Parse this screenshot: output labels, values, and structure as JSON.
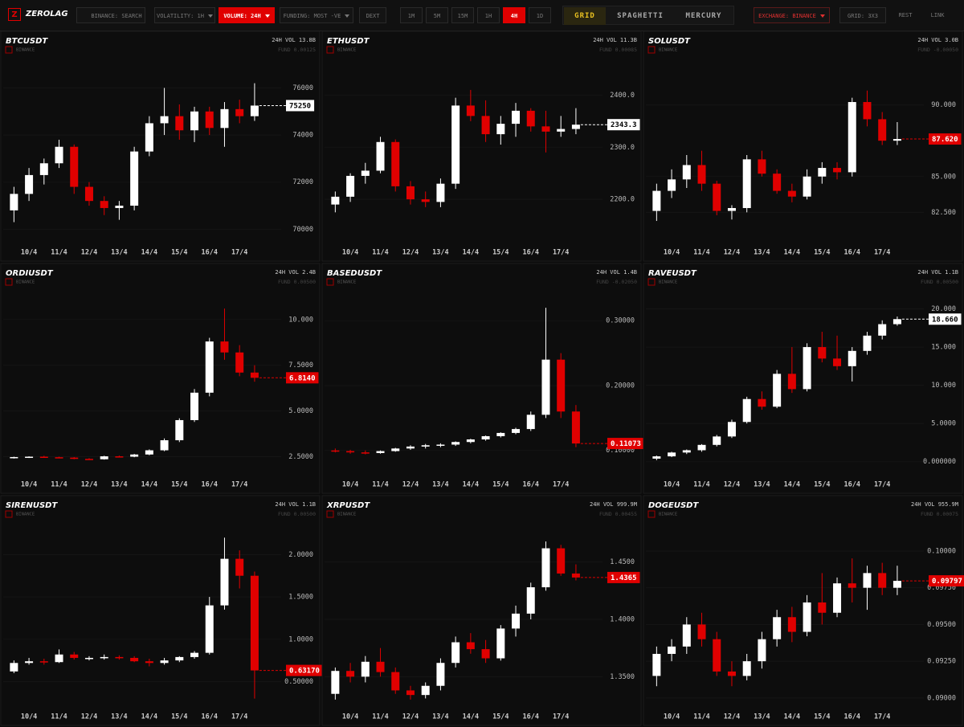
{
  "toolbar": {
    "logo_mark": "Z",
    "logo": "ZEROLAG",
    "search": "BINANCE: SEARCH",
    "filters": [
      "VOLATILITY: 1H",
      "VOLUME: 24H",
      "FUNDING: MOST -VE",
      "DEXT"
    ],
    "active_filter": 1,
    "timeframes": [
      "1M",
      "5M",
      "15M",
      "1H",
      "4H",
      "1D"
    ],
    "active_timeframe": 4,
    "views": [
      "GRID",
      "SPAGHETTI",
      "MERCURY"
    ],
    "active_view": 0,
    "exchange": "EXCHANGE: BINANCE",
    "grid": "GRID: 3X3",
    "rest": "REST",
    "link": "LINK"
  },
  "chart_data": [
    {
      "type": "candlestick",
      "title": "BTCUSDT",
      "exchange": "BINANCE",
      "volume": "24H VOL 13.8B",
      "funding": "FUND 0.00125",
      "categories": [
        "10/4",
        "11/4",
        "12/4",
        "13/4",
        "14/4",
        "15/4",
        "16/4",
        "17/4"
      ],
      "open": [
        70800,
        71500,
        72300,
        72800,
        73500,
        71800,
        71200,
        70900,
        71000,
        73300,
        74500,
        74800,
        74200,
        75000,
        74300,
        75100,
        74800
      ],
      "high": [
        71800,
        72600,
        73000,
        73800,
        73600,
        72000,
        71400,
        71200,
        73500,
        74800,
        76000,
        75300,
        75200,
        75200,
        75400,
        75500,
        76200
      ],
      "low": [
        70300,
        71200,
        71900,
        72600,
        71500,
        71000,
        70600,
        70400,
        70800,
        73100,
        74000,
        73800,
        73700,
        74000,
        73500,
        74500,
        74600
      ],
      "close": [
        71500,
        72300,
        72800,
        73500,
        71800,
        71200,
        70900,
        71000,
        73300,
        74500,
        74800,
        74200,
        75000,
        74300,
        75100,
        74800,
        75250
      ],
      "last_label": "75250",
      "last_color": "#ffffff",
      "up_color": "#ffffff",
      "down_color": "#e00000",
      "ylim": [
        69500,
        76800
      ],
      "yticks": [
        70000,
        72000,
        74000,
        76000
      ]
    },
    {
      "type": "candlestick",
      "title": "ETHUSDT",
      "exchange": "BINANCE",
      "volume": "24H VOL 11.3B",
      "funding": "FUND 0.00085",
      "categories": [
        "10/4",
        "11/4",
        "12/4",
        "13/4",
        "14/4",
        "15/4",
        "16/4",
        "17/4"
      ],
      "open": [
        2190,
        2205,
        2245,
        2255,
        2310,
        2225,
        2200,
        2195,
        2230,
        2380,
        2360,
        2325,
        2345,
        2370,
        2340,
        2330,
        2335
      ],
      "high": [
        2215,
        2250,
        2270,
        2320,
        2315,
        2235,
        2215,
        2240,
        2395,
        2410,
        2390,
        2360,
        2385,
        2375,
        2370,
        2360,
        2375
      ],
      "low": [
        2175,
        2195,
        2230,
        2250,
        2215,
        2190,
        2185,
        2185,
        2220,
        2350,
        2310,
        2305,
        2320,
        2330,
        2290,
        2320,
        2325
      ],
      "close": [
        2205,
        2245,
        2255,
        2310,
        2225,
        2200,
        2195,
        2230,
        2380,
        2360,
        2325,
        2345,
        2370,
        2340,
        2330,
        2335,
        2343.3
      ],
      "last_label": "2343.3",
      "last_color": "#ffffff",
      "up_color": "#ffffff",
      "down_color": "#e00000",
      "ylim": [
        2120,
        2450
      ],
      "yticks": [
        {
          "value": 2200,
          "label": "2200.0"
        },
        {
          "value": 2300,
          "label": "2300.0"
        },
        {
          "value": 2400,
          "label": "2400.0"
        }
      ]
    },
    {
      "type": "candlestick",
      "title": "SOLUSDT",
      "exchange": "BINANCE",
      "volume": "24H VOL 3.0B",
      "funding": "FUND -0.00050",
      "categories": [
        "10/4",
        "11/4",
        "12/4",
        "13/4",
        "14/4",
        "15/4",
        "16/4",
        "17/4"
      ],
      "open": [
        82.6,
        84.0,
        84.8,
        85.8,
        84.5,
        82.6,
        82.8,
        86.2,
        85.2,
        84.0,
        83.6,
        85.0,
        85.6,
        85.3,
        90.2,
        89.0,
        87.5
      ],
      "high": [
        84.5,
        85.5,
        86.5,
        86.8,
        84.7,
        83.0,
        86.5,
        86.8,
        85.5,
        84.5,
        85.5,
        86.0,
        86.0,
        90.5,
        91.0,
        89.5,
        88.8
      ],
      "low": [
        81.9,
        83.5,
        84.2,
        84.0,
        82.3,
        82.0,
        82.5,
        85.0,
        83.8,
        83.2,
        83.4,
        84.5,
        84.8,
        85.0,
        88.5,
        87.2,
        87.2
      ],
      "close": [
        84.0,
        84.8,
        85.8,
        84.5,
        82.6,
        82.8,
        86.2,
        85.2,
        84.0,
        83.6,
        85.0,
        85.6,
        85.3,
        90.2,
        89.0,
        87.5,
        87.62
      ],
      "last_label": "87.620",
      "last_color": "#e00000",
      "up_color": "#ffffff",
      "down_color": "#e00000",
      "ylim": [
        80.5,
        92.5
      ],
      "yticks": [
        {
          "value": 82.5,
          "label": "82.500"
        },
        {
          "value": 85,
          "label": "85.000"
        },
        {
          "value": 90,
          "label": "90.000"
        }
      ]
    },
    {
      "type": "candlestick",
      "title": "ORDIUSDT",
      "exchange": "BINANCE",
      "volume": "24H VOL 2.4B",
      "funding": "FUND 0.00500",
      "categories": [
        "10/4",
        "11/4",
        "12/4",
        "13/4",
        "14/4",
        "15/4",
        "16/4",
        "17/4"
      ],
      "open": [
        2.45,
        2.48,
        2.5,
        2.47,
        2.45,
        2.38,
        2.36,
        2.52,
        2.5,
        2.62,
        2.85,
        3.4,
        4.5,
        6.0,
        8.8,
        8.2,
        7.1
      ],
      "high": [
        2.5,
        2.52,
        2.55,
        2.5,
        2.48,
        2.42,
        2.55,
        2.56,
        2.65,
        2.9,
        3.5,
        4.6,
        6.2,
        9.0,
        10.6,
        8.6,
        7.5
      ],
      "low": [
        2.4,
        2.43,
        2.45,
        2.42,
        2.36,
        2.33,
        2.34,
        2.46,
        2.47,
        2.58,
        2.8,
        3.3,
        4.4,
        5.8,
        7.8,
        6.9,
        6.6
      ],
      "close": [
        2.48,
        2.5,
        2.47,
        2.45,
        2.38,
        2.36,
        2.52,
        2.5,
        2.62,
        2.85,
        3.4,
        4.5,
        6.0,
        8.8,
        8.2,
        7.1,
        6.814
      ],
      "last_label": "6.8140",
      "last_color": "#e00000",
      "up_color": "#ffffff",
      "down_color": "#e00000",
      "ylim": [
        1.6,
        11
      ],
      "yticks": [
        {
          "value": 2.5,
          "label": "2.5000"
        },
        {
          "value": 5,
          "label": "5.0000"
        },
        {
          "value": 7.5,
          "label": "7.5000"
        },
        {
          "value": 10,
          "label": "10.000"
        }
      ]
    },
    {
      "type": "candlestick",
      "title": "BASEDUSDT",
      "exchange": "BINANCE",
      "volume": "24H VOL 1.4B",
      "funding": "FUND -0.02050",
      "categories": [
        "10/4",
        "11/4",
        "12/4",
        "13/4",
        "14/4",
        "15/4",
        "16/4",
        "17/4"
      ],
      "open": [
        0.1,
        0.099,
        0.097,
        0.096,
        0.099,
        0.103,
        0.106,
        0.108,
        0.109,
        0.113,
        0.117,
        0.122,
        0.127,
        0.133,
        0.155,
        0.24,
        0.16
      ],
      "high": [
        0.103,
        0.101,
        0.1,
        0.1,
        0.104,
        0.108,
        0.11,
        0.111,
        0.114,
        0.118,
        0.123,
        0.128,
        0.135,
        0.16,
        0.32,
        0.25,
        0.17
      ],
      "low": [
        0.097,
        0.095,
        0.094,
        0.095,
        0.098,
        0.101,
        0.103,
        0.105,
        0.107,
        0.111,
        0.115,
        0.12,
        0.125,
        0.13,
        0.15,
        0.15,
        0.105
      ],
      "close": [
        0.099,
        0.097,
        0.096,
        0.099,
        0.103,
        0.106,
        0.108,
        0.109,
        0.113,
        0.117,
        0.122,
        0.127,
        0.133,
        0.155,
        0.24,
        0.16,
        0.11073
      ],
      "last_label": "0.11073",
      "last_color": "#e00000",
      "up_color": "#ffffff",
      "down_color": "#e00000",
      "ylim": [
        0.065,
        0.33
      ],
      "yticks": [
        {
          "value": 0.1,
          "label": "0.10000"
        },
        {
          "value": 0.2,
          "label": "0.20000"
        },
        {
          "value": 0.3,
          "label": "0.30000"
        }
      ]
    },
    {
      "type": "candlestick",
      "title": "RAVEUSDT",
      "exchange": "BINANCE",
      "volume": "24H VOL 1.1B",
      "funding": "FUND 0.00500",
      "categories": [
        "10/4",
        "11/4",
        "12/4",
        "13/4",
        "14/4",
        "15/4",
        "16/4",
        "17/4"
      ],
      "open": [
        0.4,
        0.7,
        1.2,
        1.5,
        2.2,
        3.3,
        5.2,
        8.2,
        7.2,
        11.5,
        9.5,
        15.0,
        13.5,
        12.5,
        14.5,
        16.5,
        18.0
      ],
      "high": [
        0.8,
        1.3,
        1.6,
        2.3,
        3.5,
        5.5,
        8.5,
        9.2,
        12.0,
        15.0,
        15.5,
        17.0,
        16.5,
        15.0,
        17.0,
        18.5,
        19.0
      ],
      "low": [
        0.2,
        0.6,
        1.0,
        1.3,
        2.0,
        3.1,
        5.0,
        6.8,
        7.0,
        9.0,
        9.2,
        13.0,
        12.0,
        10.5,
        14.0,
        16.0,
        17.8
      ],
      "close": [
        0.7,
        1.2,
        1.5,
        2.2,
        3.3,
        5.2,
        8.2,
        7.2,
        11.5,
        9.5,
        15.0,
        13.5,
        12.5,
        14.5,
        16.5,
        18.0,
        18.66
      ],
      "last_label": "18.660",
      "last_color": "#ffffff",
      "up_color": "#ffffff",
      "down_color": "#e00000",
      "ylim": [
        -1.5,
        21
      ],
      "yticks": [
        {
          "value": 0,
          "label": "0.000000"
        },
        {
          "value": 5,
          "label": "5.0000"
        },
        {
          "value": 10,
          "label": "10.000"
        },
        {
          "value": 15,
          "label": "15.000"
        },
        {
          "value": 20,
          "label": "20.000"
        }
      ]
    },
    {
      "type": "candlestick",
      "title": "SIRENUSDT",
      "exchange": "BINANCE",
      "volume": "24H VOL 1.1B",
      "funding": "FUND 0.00500",
      "categories": [
        "10/4",
        "11/4",
        "12/4",
        "13/4",
        "14/4",
        "15/4",
        "16/4",
        "17/4"
      ],
      "open": [
        0.62,
        0.72,
        0.74,
        0.73,
        0.82,
        0.78,
        0.78,
        0.79,
        0.78,
        0.74,
        0.72,
        0.75,
        0.79,
        0.84,
        1.4,
        1.95,
        1.75
      ],
      "high": [
        0.75,
        0.78,
        0.77,
        0.88,
        0.85,
        0.8,
        0.82,
        0.81,
        0.8,
        0.77,
        0.78,
        0.8,
        0.86,
        1.5,
        2.2,
        2.05,
        1.8
      ],
      "low": [
        0.6,
        0.7,
        0.7,
        0.72,
        0.76,
        0.75,
        0.76,
        0.76,
        0.73,
        0.68,
        0.7,
        0.73,
        0.77,
        0.82,
        1.35,
        1.6,
        0.3
      ],
      "close": [
        0.72,
        0.74,
        0.73,
        0.82,
        0.78,
        0.78,
        0.79,
        0.78,
        0.74,
        0.72,
        0.75,
        0.79,
        0.84,
        1.4,
        1.95,
        1.75,
        0.6317
      ],
      "last_label": "0.63170",
      "last_color": "#e00000",
      "up_color": "#ffffff",
      "down_color": "#e00000",
      "ylim": [
        0.22,
        2.25
      ],
      "yticks": [
        {
          "value": 0.5,
          "label": "0.50000"
        },
        {
          "value": 1,
          "label": "1.0000"
        },
        {
          "value": 1.5,
          "label": "1.5000"
        },
        {
          "value": 2,
          "label": "2.0000"
        }
      ]
    },
    {
      "type": "candlestick",
      "title": "XRPUSDT",
      "exchange": "BINANCE",
      "volume": "24H VOL 999.9M",
      "funding": "FUND 0.00455",
      "categories": [
        "10/4",
        "11/4",
        "12/4",
        "13/4",
        "14/4",
        "15/4",
        "16/4",
        "17/4"
      ],
      "open": [
        1.335,
        1.355,
        1.35,
        1.363,
        1.354,
        1.338,
        1.334,
        1.342,
        1.362,
        1.38,
        1.374,
        1.366,
        1.392,
        1.405,
        1.428,
        1.462,
        1.44
      ],
      "high": [
        1.358,
        1.362,
        1.368,
        1.375,
        1.358,
        1.342,
        1.345,
        1.366,
        1.385,
        1.388,
        1.382,
        1.395,
        1.412,
        1.432,
        1.468,
        1.465,
        1.448
      ],
      "low": [
        1.33,
        1.345,
        1.345,
        1.35,
        1.335,
        1.33,
        1.331,
        1.338,
        1.358,
        1.37,
        1.362,
        1.364,
        1.385,
        1.4,
        1.425,
        1.438,
        1.434
      ],
      "close": [
        1.355,
        1.35,
        1.363,
        1.354,
        1.338,
        1.334,
        1.342,
        1.362,
        1.38,
        1.374,
        1.366,
        1.392,
        1.405,
        1.428,
        1.462,
        1.44,
        1.4365
      ],
      "last_label": "1.4365",
      "last_color": "#e00000",
      "up_color": "#ffffff",
      "down_color": "#e00000",
      "ylim": [
        1.325,
        1.475
      ],
      "yticks": [
        {
          "value": 1.35,
          "label": "1.3500"
        },
        {
          "value": 1.4,
          "label": "1.4000"
        },
        {
          "value": 1.45,
          "label": "1.4500"
        }
      ]
    },
    {
      "type": "candlestick",
      "title": "DOGEUSDT",
      "exchange": "BINANCE",
      "volume": "24H VOL 955.9M",
      "funding": "FUND 0.00075",
      "categories": [
        "10/4",
        "11/4",
        "12/4",
        "13/4",
        "14/4",
        "15/4",
        "16/4",
        "17/4"
      ],
      "open": [
        0.0915,
        0.093,
        0.0935,
        0.095,
        0.094,
        0.0918,
        0.0915,
        0.0925,
        0.094,
        0.0955,
        0.0945,
        0.0965,
        0.0958,
        0.0978,
        0.0975,
        0.0985,
        0.0975
      ],
      "high": [
        0.0935,
        0.094,
        0.0955,
        0.0958,
        0.0945,
        0.0925,
        0.093,
        0.0945,
        0.096,
        0.0962,
        0.097,
        0.0985,
        0.0982,
        0.0995,
        0.099,
        0.0992,
        0.099
      ],
      "low": [
        0.0908,
        0.0925,
        0.093,
        0.0935,
        0.0915,
        0.0908,
        0.0912,
        0.092,
        0.0935,
        0.0938,
        0.0942,
        0.095,
        0.0955,
        0.0965,
        0.096,
        0.097,
        0.097
      ],
      "close": [
        0.093,
        0.0935,
        0.095,
        0.094,
        0.0918,
        0.0915,
        0.0925,
        0.094,
        0.0955,
        0.0945,
        0.0965,
        0.0958,
        0.0978,
        0.0975,
        0.0985,
        0.0975,
        0.09797
      ],
      "last_label": "0.09797",
      "last_color": "#e00000",
      "up_color": "#ffffff",
      "down_color": "#e00000",
      "ylim": [
        0.0895,
        0.1012
      ],
      "yticks": [
        {
          "value": 0.09,
          "label": "0.09000"
        },
        {
          "value": 0.0925,
          "label": "0.09250"
        },
        {
          "value": 0.095,
          "label": "0.09500"
        },
        {
          "value": 0.0975,
          "label": "0.09750"
        },
        {
          "value": 0.1,
          "label": "0.10000"
        }
      ]
    }
  ]
}
